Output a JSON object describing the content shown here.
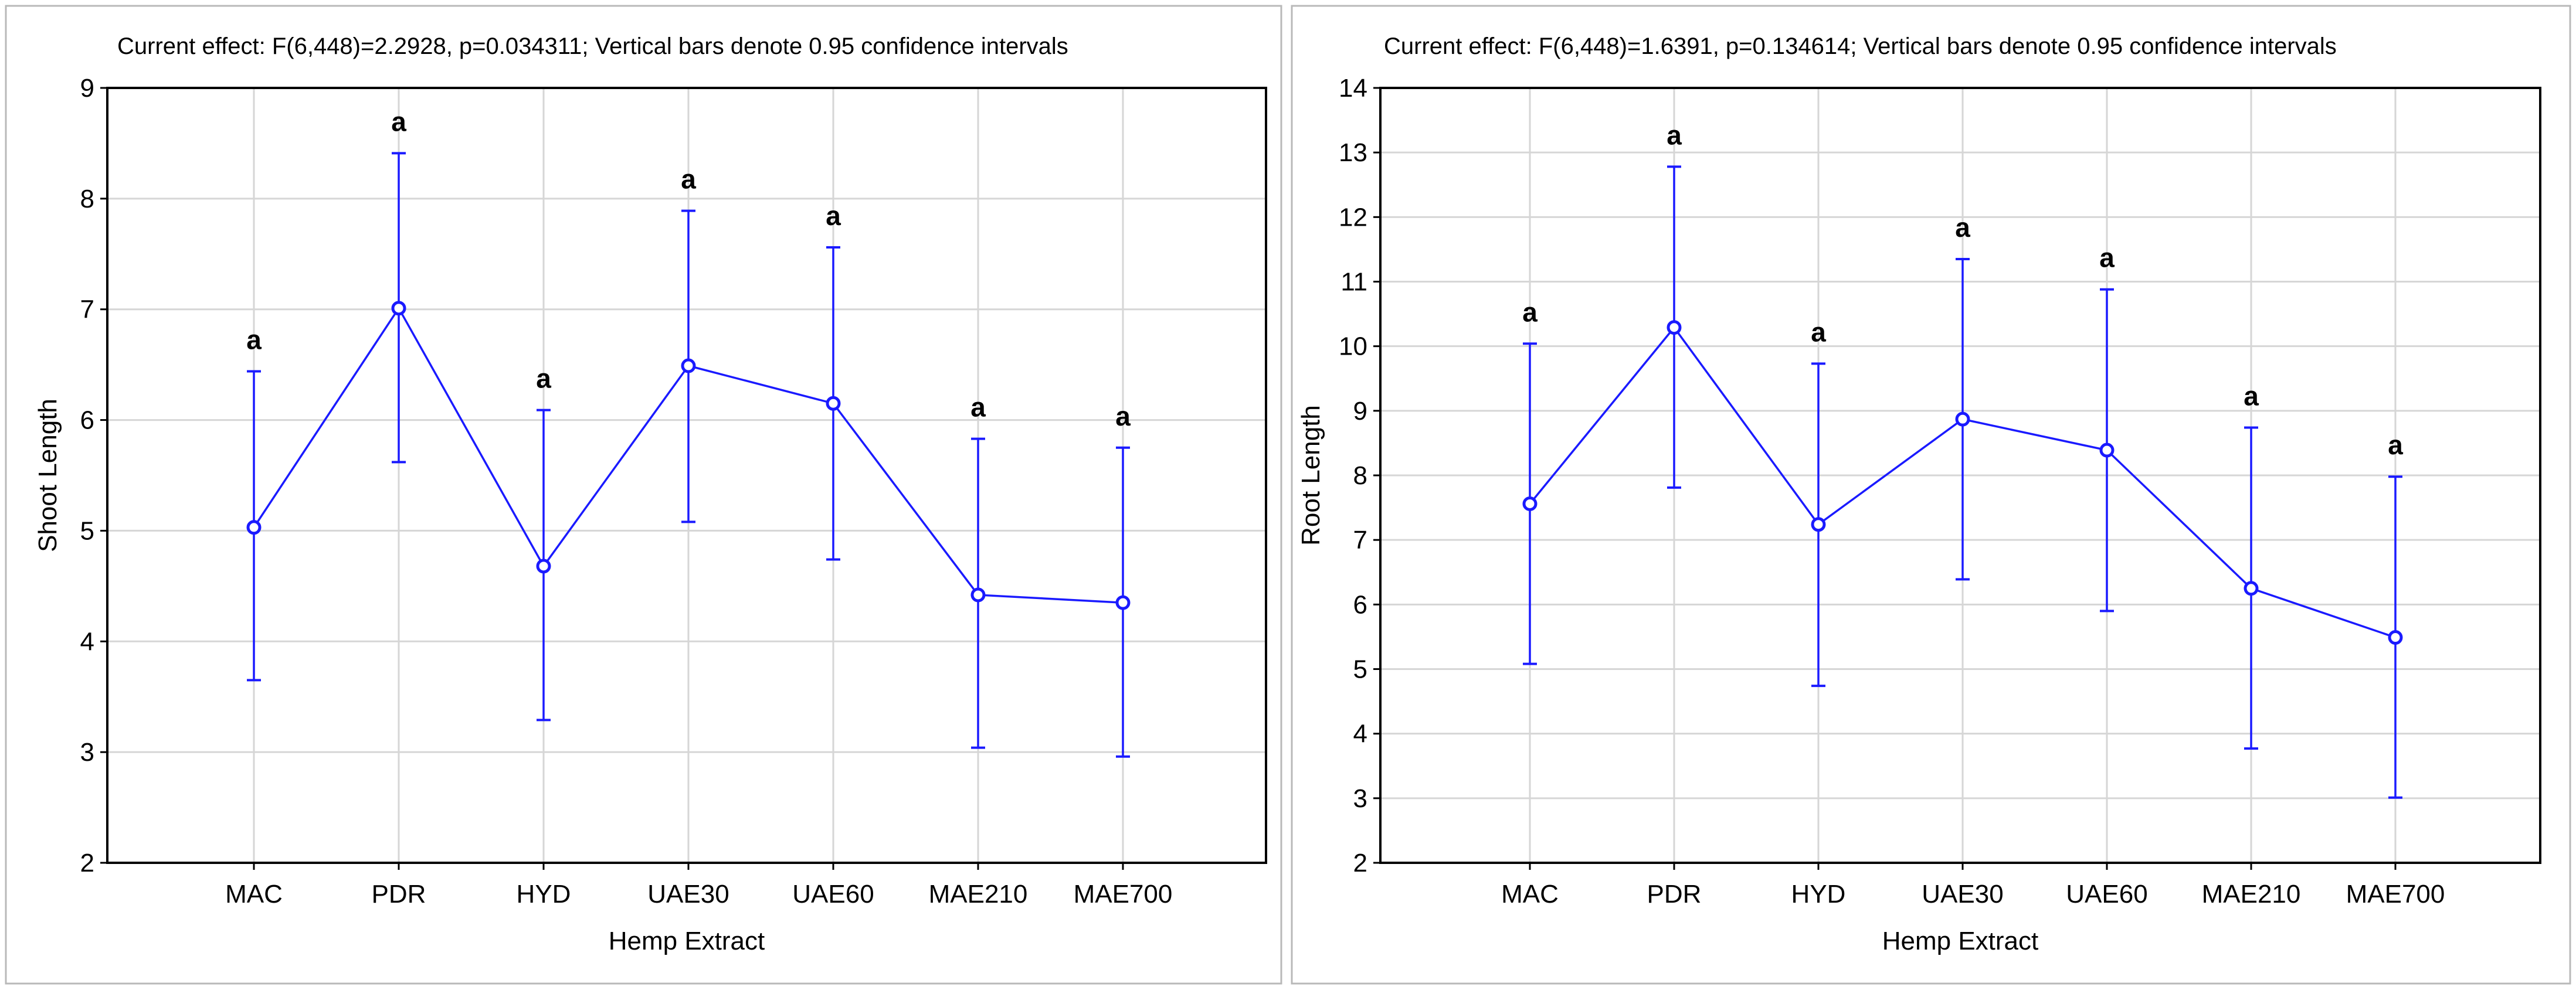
{
  "colors": {
    "series": "#1a1aff",
    "grid": "#d6d6d6",
    "axis": "#000000",
    "background": "#ffffff"
  },
  "chart_data": [
    {
      "type": "line",
      "title": "Current effect: F(6,448)=2.2928, p=0.034311; Vertical bars denote 0.95 confidence intervals",
      "xlabel": "Hemp Extract",
      "ylabel": "Shoot Length",
      "ylim": [
        2,
        9
      ],
      "y_ticks": [
        "2",
        "3",
        "4",
        "5",
        "6",
        "7",
        "8",
        "9"
      ],
      "grid": true,
      "categories": [
        "MAC",
        "PDR",
        "HYD",
        "UAE30",
        "UAE60",
        "MAE210",
        "MAE700"
      ],
      "values": [
        5.03,
        7.01,
        4.68,
        6.49,
        6.15,
        4.42,
        4.35
      ],
      "ci_lower": [
        3.65,
        5.62,
        3.29,
        5.08,
        4.74,
        3.04,
        2.96
      ],
      "ci_upper": [
        6.44,
        8.41,
        6.09,
        7.89,
        7.56,
        5.83,
        5.75
      ],
      "significance_labels": [
        "a",
        "a",
        "a",
        "a",
        "a",
        "a",
        "a"
      ]
    },
    {
      "type": "line",
      "title": "Current effect: F(6,448)=1.6391, p=0.134614; Vertical bars denote 0.95 confidence intervals",
      "xlabel": "Hemp Extract",
      "ylabel": "Root Length",
      "ylim": [
        2,
        14
      ],
      "y_ticks": [
        "2",
        "3",
        "4",
        "5",
        "6",
        "7",
        "8",
        "9",
        "10",
        "11",
        "12",
        "13",
        "14"
      ],
      "grid": true,
      "categories": [
        "MAC",
        "PDR",
        "HYD",
        "UAE30",
        "UAE60",
        "MAE210",
        "MAE700"
      ],
      "values": [
        7.56,
        10.29,
        7.24,
        8.87,
        8.39,
        6.25,
        5.49
      ],
      "ci_lower": [
        5.08,
        7.81,
        4.74,
        6.39,
        5.9,
        3.77,
        3.01
      ],
      "ci_upper": [
        10.04,
        12.78,
        9.73,
        11.35,
        10.88,
        8.74,
        7.98
      ],
      "significance_labels": [
        "a",
        "a",
        "a",
        "a",
        "a",
        "a",
        "a"
      ]
    }
  ]
}
